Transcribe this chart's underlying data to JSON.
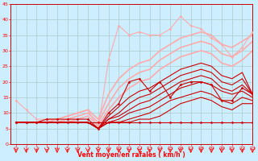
{
  "xlabel": "Vent moyen/en rafales ( km/h )",
  "background_color": "#cceeff",
  "grid_color": "#aacccc",
  "xlim": [
    -0.5,
    23
  ],
  "ylim": [
    0,
    45
  ],
  "yticks": [
    0,
    5,
    10,
    15,
    20,
    25,
    30,
    35,
    40,
    45
  ],
  "xticks": [
    0,
    1,
    2,
    3,
    4,
    5,
    6,
    7,
    8,
    9,
    10,
    11,
    12,
    13,
    14,
    15,
    16,
    17,
    18,
    19,
    20,
    21,
    22,
    23
  ],
  "series": [
    {
      "x": [
        0,
        1,
        2,
        3,
        4,
        5,
        6,
        7,
        8,
        9,
        10,
        11,
        12,
        13,
        14,
        15,
        16,
        17,
        18,
        19,
        20,
        21,
        22,
        23
      ],
      "y": [
        14,
        11,
        8,
        8,
        8,
        9,
        10,
        11,
        5,
        27,
        38,
        35,
        36,
        35,
        35,
        37,
        41,
        38,
        37,
        34,
        32,
        28,
        31,
        36
      ],
      "color": "#ffaaaa",
      "lw": 0.8,
      "marker": "D",
      "ms": 1.5,
      "zorder": 3
    },
    {
      "x": [
        0,
        1,
        2,
        3,
        4,
        5,
        6,
        7,
        8,
        9,
        10,
        11,
        12,
        13,
        14,
        15,
        16,
        17,
        18,
        19,
        20,
        21,
        22,
        23
      ],
      "y": [
        7,
        7,
        7,
        7,
        8,
        9,
        10,
        11,
        8,
        16,
        21,
        24,
        26,
        27,
        30,
        32,
        34,
        35,
        36,
        35,
        32,
        31,
        33,
        35
      ],
      "color": "#ffaaaa",
      "lw": 1.2,
      "marker": null,
      "ms": 0,
      "zorder": 2
    },
    {
      "x": [
        0,
        1,
        2,
        3,
        4,
        5,
        6,
        7,
        8,
        9,
        10,
        11,
        12,
        13,
        14,
        15,
        16,
        17,
        18,
        19,
        20,
        21,
        22,
        23
      ],
      "y": [
        7,
        7,
        7,
        7,
        7,
        8,
        9,
        10,
        7,
        13,
        18,
        21,
        23,
        24,
        27,
        29,
        31,
        32,
        33,
        32,
        29,
        28,
        30,
        33
      ],
      "color": "#ffaaaa",
      "lw": 1.2,
      "marker": null,
      "ms": 0,
      "zorder": 2
    },
    {
      "x": [
        0,
        1,
        2,
        3,
        4,
        5,
        6,
        7,
        8,
        9,
        10,
        11,
        12,
        13,
        14,
        15,
        16,
        17,
        18,
        19,
        20,
        21,
        22,
        23
      ],
      "y": [
        7,
        7,
        7,
        7,
        7,
        7,
        8,
        9,
        6,
        11,
        15,
        18,
        20,
        21,
        24,
        26,
        28,
        29,
        30,
        29,
        26,
        25,
        27,
        30
      ],
      "color": "#ffaaaa",
      "lw": 1.2,
      "marker": null,
      "ms": 0,
      "zorder": 2
    },
    {
      "x": [
        0,
        1,
        2,
        3,
        4,
        5,
        6,
        7,
        8,
        9,
        10,
        11,
        12,
        13,
        14,
        15,
        16,
        17,
        18,
        19,
        20,
        21,
        22,
        23
      ],
      "y": [
        7,
        7,
        7,
        8,
        8,
        8,
        8,
        8,
        5,
        10,
        13,
        20,
        21,
        17,
        20,
        15,
        19,
        20,
        20,
        19,
        14,
        14,
        18,
        16
      ],
      "color": "#cc0000",
      "lw": 0.8,
      "marker": "D",
      "ms": 1.5,
      "zorder": 4
    },
    {
      "x": [
        0,
        1,
        2,
        3,
        4,
        5,
        6,
        7,
        8,
        9,
        10,
        11,
        12,
        13,
        14,
        15,
        16,
        17,
        18,
        19,
        20,
        21,
        22,
        23
      ],
      "y": [
        7,
        7,
        7,
        7,
        7,
        7,
        7,
        7,
        5,
        9,
        12,
        15,
        17,
        18,
        20,
        22,
        24,
        25,
        26,
        25,
        22,
        21,
        23,
        16
      ],
      "color": "#cc0000",
      "lw": 0.8,
      "marker": null,
      "ms": 0,
      "zorder": 3
    },
    {
      "x": [
        0,
        1,
        2,
        3,
        4,
        5,
        6,
        7,
        8,
        9,
        10,
        11,
        12,
        13,
        14,
        15,
        16,
        17,
        18,
        19,
        20,
        21,
        22,
        23
      ],
      "y": [
        7,
        7,
        7,
        7,
        7,
        7,
        7,
        7,
        5,
        8,
        10,
        13,
        15,
        16,
        18,
        20,
        22,
        23,
        24,
        23,
        20,
        19,
        21,
        16
      ],
      "color": "#cc0000",
      "lw": 0.8,
      "marker": null,
      "ms": 0,
      "zorder": 3
    },
    {
      "x": [
        0,
        1,
        2,
        3,
        4,
        5,
        6,
        7,
        8,
        9,
        10,
        11,
        12,
        13,
        14,
        15,
        16,
        17,
        18,
        19,
        20,
        21,
        22,
        23
      ],
      "y": [
        7,
        7,
        7,
        7,
        7,
        7,
        7,
        7,
        5,
        8,
        9,
        11,
        13,
        14,
        16,
        18,
        20,
        21,
        22,
        21,
        18,
        17,
        19,
        16
      ],
      "color": "#cc0000",
      "lw": 0.8,
      "marker": null,
      "ms": 0,
      "zorder": 3
    },
    {
      "x": [
        0,
        1,
        2,
        3,
        4,
        5,
        6,
        7,
        8,
        9,
        10,
        11,
        12,
        13,
        14,
        15,
        16,
        17,
        18,
        19,
        20,
        21,
        22,
        23
      ],
      "y": [
        7,
        7,
        7,
        7,
        7,
        7,
        7,
        7,
        5,
        7,
        8,
        10,
        11,
        12,
        14,
        16,
        18,
        19,
        20,
        19,
        17,
        16,
        17,
        15
      ],
      "color": "#cc0000",
      "lw": 0.8,
      "marker": null,
      "ms": 0,
      "zorder": 3
    },
    {
      "x": [
        0,
        1,
        2,
        3,
        4,
        5,
        6,
        7,
        8,
        9,
        10,
        11,
        12,
        13,
        14,
        15,
        16,
        17,
        18,
        19,
        20,
        21,
        22,
        23
      ],
      "y": [
        7,
        7,
        7,
        7,
        7,
        7,
        7,
        7,
        5,
        7,
        7,
        8,
        9,
        10,
        12,
        14,
        15,
        16,
        17,
        16,
        14,
        13,
        15,
        14
      ],
      "color": "#cc0000",
      "lw": 0.8,
      "marker": null,
      "ms": 0,
      "zorder": 3
    },
    {
      "x": [
        0,
        1,
        2,
        3,
        4,
        5,
        6,
        7,
        8,
        9,
        10,
        11,
        12,
        13,
        14,
        15,
        16,
        17,
        18,
        19,
        20,
        21,
        22,
        23
      ],
      "y": [
        7,
        7,
        7,
        7,
        7,
        7,
        7,
        7,
        5,
        7,
        7,
        7,
        8,
        8,
        9,
        11,
        13,
        14,
        15,
        14,
        12,
        11,
        13,
        13
      ],
      "color": "#cc0000",
      "lw": 0.8,
      "marker": null,
      "ms": 0,
      "zorder": 3
    },
    {
      "x": [
        0,
        1,
        2,
        3,
        4,
        5,
        6,
        7,
        8,
        9,
        10,
        11,
        12,
        13,
        14,
        15,
        16,
        17,
        18,
        19,
        20,
        21,
        22,
        23
      ],
      "y": [
        7,
        7,
        7,
        7,
        7,
        7,
        7,
        7,
        7,
        7,
        7,
        7,
        7,
        7,
        7,
        7,
        7,
        7,
        7,
        7,
        7,
        7,
        7,
        7
      ],
      "color": "#cc0000",
      "lw": 0.8,
      "marker": "D",
      "ms": 1.5,
      "zorder": 3
    }
  ]
}
